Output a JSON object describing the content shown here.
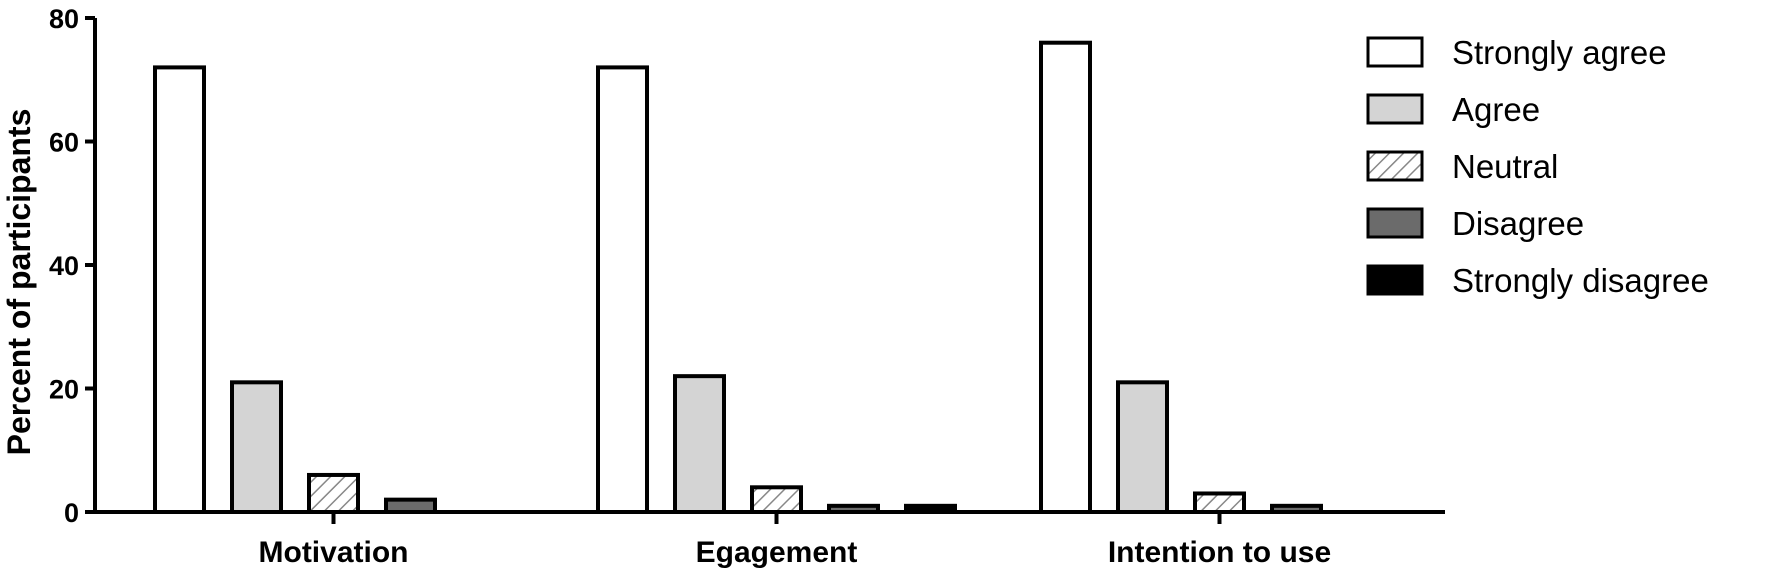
{
  "chart_data": {
    "type": "bar",
    "title": "",
    "xlabel": "",
    "ylabel": "Percent of participants",
    "ylim": [
      0,
      80
    ],
    "yticks": [
      0,
      20,
      40,
      60,
      80
    ],
    "grid": false,
    "legend_position": "top-right",
    "categories": [
      "Motivation",
      "Egagement",
      "Intention to use"
    ],
    "series": [
      {
        "name": "Strongly agree",
        "values": [
          72,
          72,
          76
        ],
        "fill": "#ffffff",
        "pattern": "none"
      },
      {
        "name": "Agree",
        "values": [
          21,
          22,
          21
        ],
        "fill": "#d4d4d4",
        "pattern": "none"
      },
      {
        "name": "Neutral",
        "values": [
          6,
          4,
          3
        ],
        "fill": "#ffffff",
        "pattern": "hatch"
      },
      {
        "name": "Disagree",
        "values": [
          2,
          1,
          1
        ],
        "fill": "#6b6b6b",
        "pattern": "none"
      },
      {
        "name": "Strongly disagree",
        "values": [
          0,
          1,
          0
        ],
        "fill": "#000000",
        "pattern": "none"
      }
    ]
  }
}
